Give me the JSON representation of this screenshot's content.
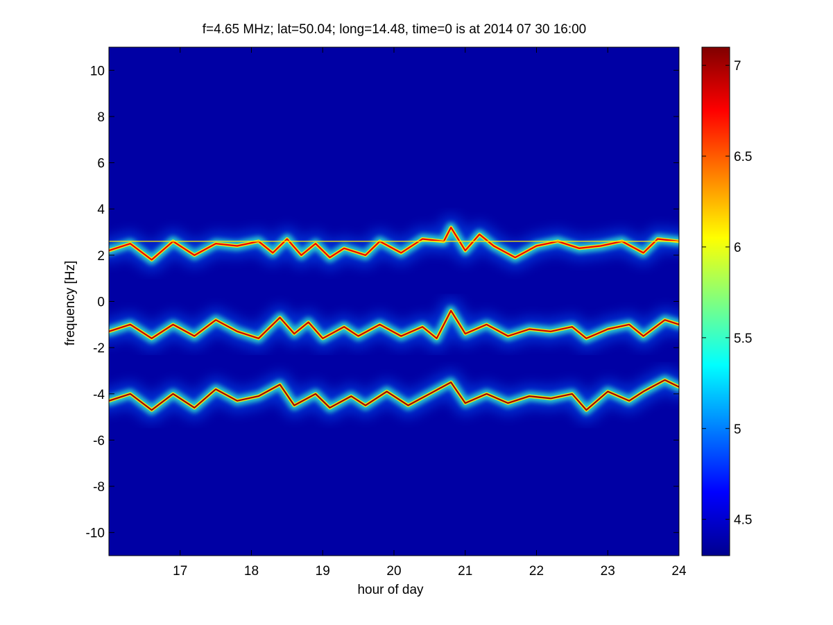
{
  "chart_data": {
    "type": "heatmap",
    "title": "f=4.65 MHz;  lat=50.04; long=14.48, time=0 is at 2014 07 30 16:00",
    "xlabel": "hour of day",
    "ylabel": "frequency [Hz]",
    "xlim": [
      16,
      24
    ],
    "ylim": [
      -11,
      11
    ],
    "xticks": [
      17,
      18,
      19,
      20,
      21,
      22,
      23,
      24
    ],
    "yticks": [
      10,
      8,
      6,
      4,
      2,
      0,
      -2,
      -4,
      -6,
      -8,
      -10
    ],
    "colorbar": {
      "colormap": "jet",
      "range": [
        4.3,
        7.1
      ],
      "ticks": [
        "7",
        "6.5",
        "6",
        "5.5",
        "5",
        "4.5"
      ],
      "tick_values": [
        7,
        6.5,
        6,
        5.5,
        5,
        4.5
      ]
    },
    "background_value": 4.4,
    "traces": [
      {
        "name": "Doppler trace ~2.6 Hz",
        "points": [
          [
            16.0,
            2.2
          ],
          [
            16.3,
            2.5
          ],
          [
            16.6,
            1.8
          ],
          [
            16.9,
            2.6
          ],
          [
            17.2,
            2.0
          ],
          [
            17.5,
            2.5
          ],
          [
            17.8,
            2.4
          ],
          [
            18.1,
            2.6
          ],
          [
            18.3,
            2.1
          ],
          [
            18.5,
            2.7
          ],
          [
            18.7,
            2.0
          ],
          [
            18.9,
            2.5
          ],
          [
            19.1,
            1.9
          ],
          [
            19.3,
            2.3
          ],
          [
            19.6,
            2.0
          ],
          [
            19.8,
            2.6
          ],
          [
            20.1,
            2.1
          ],
          [
            20.4,
            2.7
          ],
          [
            20.7,
            2.6
          ],
          [
            20.8,
            3.2
          ],
          [
            21.0,
            2.2
          ],
          [
            21.2,
            2.9
          ],
          [
            21.4,
            2.4
          ],
          [
            21.7,
            1.9
          ],
          [
            22.0,
            2.4
          ],
          [
            22.3,
            2.6
          ],
          [
            22.6,
            2.3
          ],
          [
            22.9,
            2.4
          ],
          [
            23.2,
            2.6
          ],
          [
            23.5,
            2.1
          ],
          [
            23.7,
            2.7
          ],
          [
            24.0,
            2.6
          ]
        ],
        "intensity": 6.4
      },
      {
        "name": "Doppler trace ~-1.2 Hz",
        "points": [
          [
            16.0,
            -1.3
          ],
          [
            16.3,
            -1.0
          ],
          [
            16.6,
            -1.6
          ],
          [
            16.9,
            -1.0
          ],
          [
            17.2,
            -1.5
          ],
          [
            17.5,
            -0.8
          ],
          [
            17.8,
            -1.3
          ],
          [
            18.1,
            -1.6
          ],
          [
            18.4,
            -0.7
          ],
          [
            18.6,
            -1.4
          ],
          [
            18.8,
            -0.9
          ],
          [
            19.0,
            -1.6
          ],
          [
            19.3,
            -1.1
          ],
          [
            19.5,
            -1.5
          ],
          [
            19.8,
            -1.0
          ],
          [
            20.1,
            -1.5
          ],
          [
            20.4,
            -1.1
          ],
          [
            20.6,
            -1.6
          ],
          [
            20.8,
            -0.4
          ],
          [
            21.0,
            -1.4
          ],
          [
            21.3,
            -1.0
          ],
          [
            21.6,
            -1.5
          ],
          [
            21.9,
            -1.2
          ],
          [
            22.2,
            -1.3
          ],
          [
            22.5,
            -1.1
          ],
          [
            22.7,
            -1.6
          ],
          [
            23.0,
            -1.2
          ],
          [
            23.3,
            -1.0
          ],
          [
            23.5,
            -1.5
          ],
          [
            23.8,
            -0.8
          ],
          [
            24.0,
            -1.0
          ]
        ],
        "intensity": 6.5
      },
      {
        "name": "Doppler trace ~-4.1 Hz",
        "points": [
          [
            16.0,
            -4.3
          ],
          [
            16.3,
            -4.0
          ],
          [
            16.6,
            -4.7
          ],
          [
            16.9,
            -4.0
          ],
          [
            17.2,
            -4.6
          ],
          [
            17.5,
            -3.8
          ],
          [
            17.8,
            -4.3
          ],
          [
            18.1,
            -4.1
          ],
          [
            18.4,
            -3.6
          ],
          [
            18.6,
            -4.5
          ],
          [
            18.9,
            -4.0
          ],
          [
            19.1,
            -4.6
          ],
          [
            19.4,
            -4.1
          ],
          [
            19.6,
            -4.5
          ],
          [
            19.9,
            -3.9
          ],
          [
            20.2,
            -4.5
          ],
          [
            20.5,
            -4.0
          ],
          [
            20.8,
            -3.5
          ],
          [
            21.0,
            -4.4
          ],
          [
            21.3,
            -4.0
          ],
          [
            21.6,
            -4.4
          ],
          [
            21.9,
            -4.1
          ],
          [
            22.2,
            -4.2
          ],
          [
            22.5,
            -4.0
          ],
          [
            22.7,
            -4.7
          ],
          [
            23.0,
            -3.9
          ],
          [
            23.3,
            -4.3
          ],
          [
            23.5,
            -3.9
          ],
          [
            23.8,
            -3.4
          ],
          [
            24.0,
            -3.7
          ]
        ],
        "intensity": 6.6
      },
      {
        "name": "steady carrier line",
        "points": [
          [
            16.0,
            2.6
          ],
          [
            24.0,
            2.6
          ]
        ],
        "intensity": 6.1
      }
    ]
  }
}
